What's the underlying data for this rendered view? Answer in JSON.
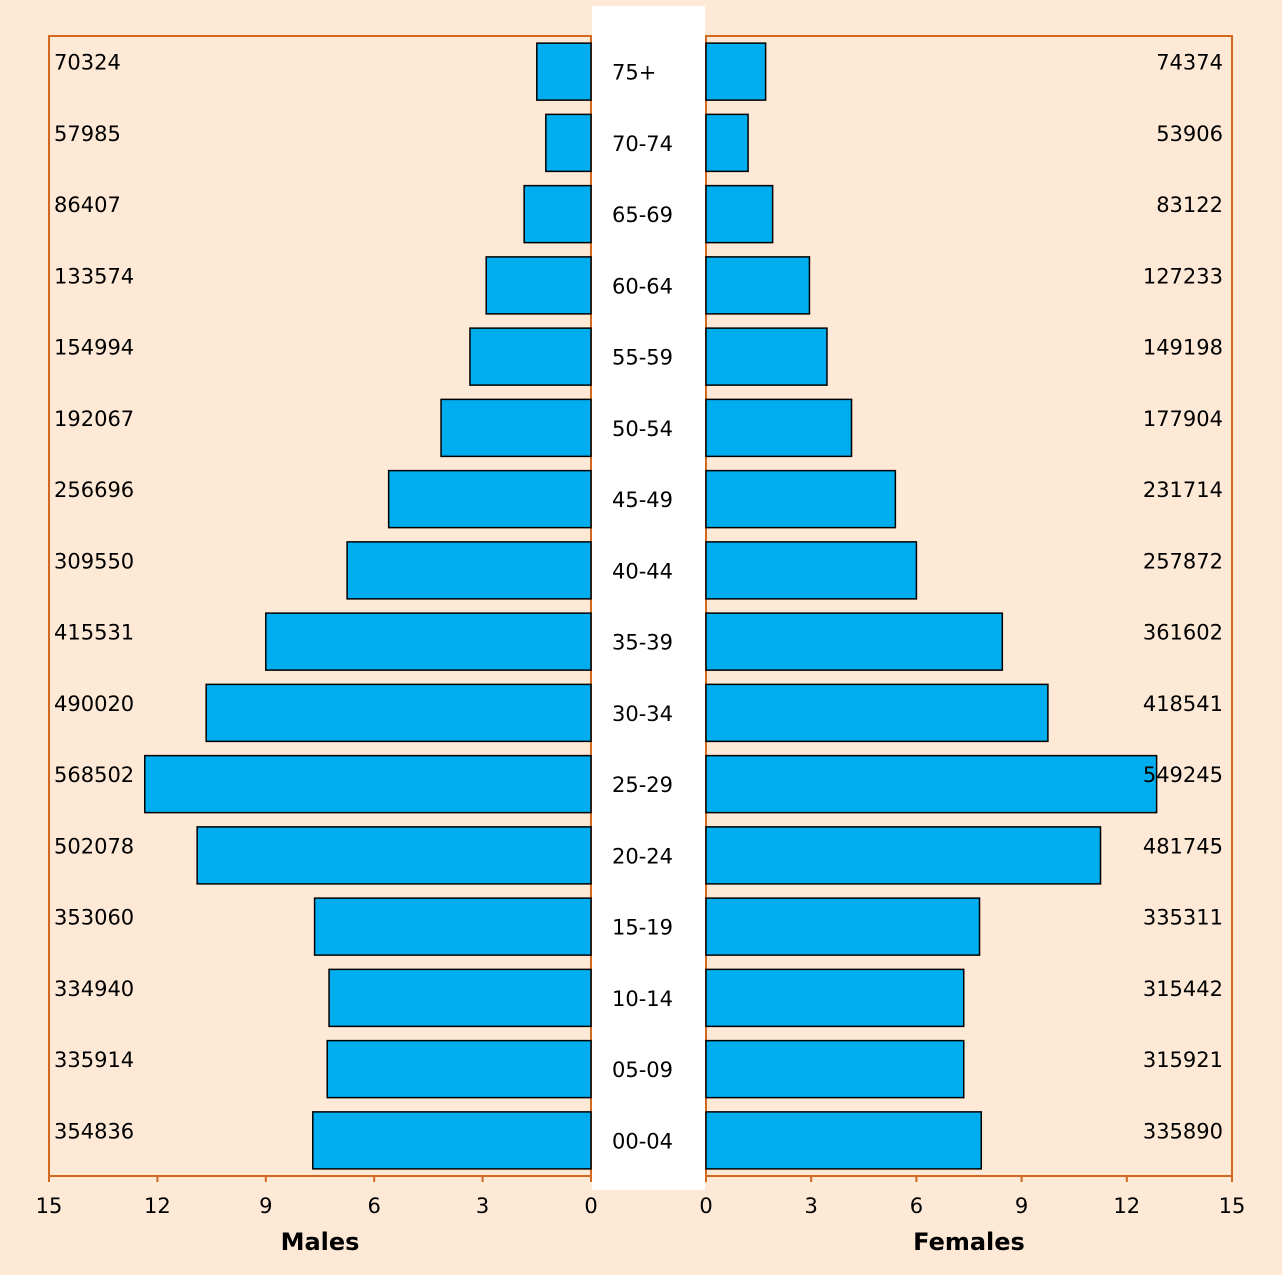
{
  "chart_data": {
    "type": "bar",
    "subtype": "population-pyramid",
    "categories": [
      "75+",
      "70-74",
      "65-69",
      "60-64",
      "55-59",
      "50-54",
      "45-49",
      "40-44",
      "35-39",
      "30-34",
      "25-29",
      "20-24",
      "15-19",
      "10-14",
      "05-09",
      "00-04"
    ],
    "series": [
      {
        "name": "Males",
        "values": [
          1.5,
          1.25,
          1.85,
          2.9,
          3.35,
          4.15,
          5.6,
          6.75,
          9.0,
          10.65,
          12.35,
          10.9,
          7.65,
          7.25,
          7.3,
          7.7
        ],
        "counts": [
          "70324",
          "57985",
          "86407",
          "133574",
          "154994",
          "192067",
          "256696",
          "309550",
          "415531",
          "490020",
          "568502",
          "502078",
          "353060",
          "334940",
          "335914",
          "354836"
        ]
      },
      {
        "name": "Females",
        "values": [
          1.7,
          1.2,
          1.9,
          2.95,
          3.45,
          4.15,
          5.4,
          6.0,
          8.45,
          9.75,
          12.85,
          11.25,
          7.8,
          7.35,
          7.35,
          7.85
        ],
        "counts": [
          "74374",
          "53906",
          "83122",
          "127233",
          "149198",
          "177904",
          "231714",
          "257872",
          "361602",
          "418541",
          "549245",
          "481745",
          "335311",
          "315442",
          "315921",
          "335890"
        ]
      }
    ],
    "xlim": [
      0,
      15
    ],
    "xticks": [
      "0",
      "3",
      "6",
      "9",
      "12",
      "15"
    ],
    "xlabel_left": "Males",
    "xlabel_right": "Females",
    "colors": {
      "bar": "#00aeef",
      "panel": "#fde9d6",
      "axis": "#d2691e",
      "bar_stroke": "#000000"
    },
    "grid": false,
    "legend": "none"
  }
}
